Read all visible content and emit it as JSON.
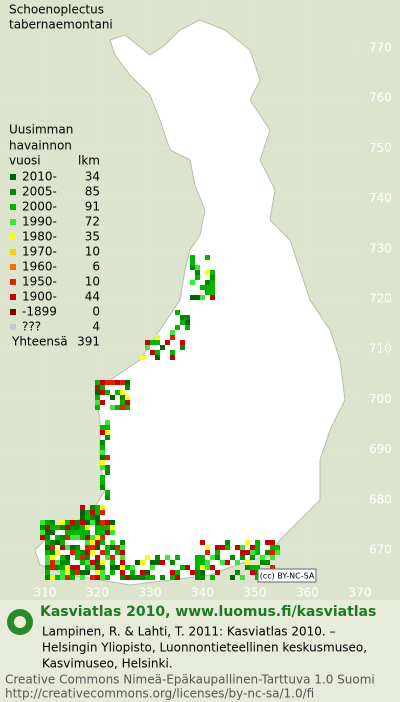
{
  "title": [
    "Schoenoplectus",
    "tabernaemontani"
  ],
  "legend": {
    "header": [
      "Uusimman",
      "havainnon",
      "vuosi"
    ],
    "count_header": "lkm",
    "rows": [
      {
        "label": "2010-",
        "count": 34,
        "color": "#006400"
      },
      {
        "label": "2005-",
        "count": 85,
        "color": "#008a00"
      },
      {
        "label": "2000-",
        "count": 91,
        "color": "#00b400"
      },
      {
        "label": "1990-",
        "count": 72,
        "color": "#3ce63c"
      },
      {
        "label": "1980-",
        "count": 35,
        "color": "#ffff00"
      },
      {
        "label": "1970-",
        "count": 10,
        "color": "#ffcc00"
      },
      {
        "label": "1960-",
        "count": 6,
        "color": "#ff6a00"
      },
      {
        "label": "1950-",
        "count": 10,
        "color": "#e02000"
      },
      {
        "label": "1900-",
        "count": 44,
        "color": "#c80000"
      },
      {
        "label": "-1899",
        "count": 0,
        "color": "#800000"
      },
      {
        "label": "???",
        "count": 4,
        "color": "#c8c8c8"
      }
    ],
    "total_label": "Yhteensä",
    "total": 391
  },
  "grid": {
    "y_labels": [
      770,
      760,
      750,
      740,
      730,
      720,
      710,
      700,
      690,
      680,
      670
    ],
    "x_labels": [
      310,
      320,
      330,
      340,
      350,
      360,
      370
    ]
  },
  "badge": "(cc) BY-NC-SA",
  "footer": {
    "site": "Kasviatlas 2010, www.luomus.fi/kasviatlas",
    "citation": [
      "Lampinen, R. & Lahti, T. 2011: Kasviatlas 2010. –",
      "Helsingin Yliopisto, Luonnontieteellinen keskusmuseo,",
      "Kasvimuseo, Helsinki."
    ],
    "license": [
      "Creative Commons Nimeä-Epäkaupallinen-Tarttuva 1.0 Suomi",
      "http://creativecommons.org/licenses/by-nc-sa/1.0/fi"
    ]
  }
}
